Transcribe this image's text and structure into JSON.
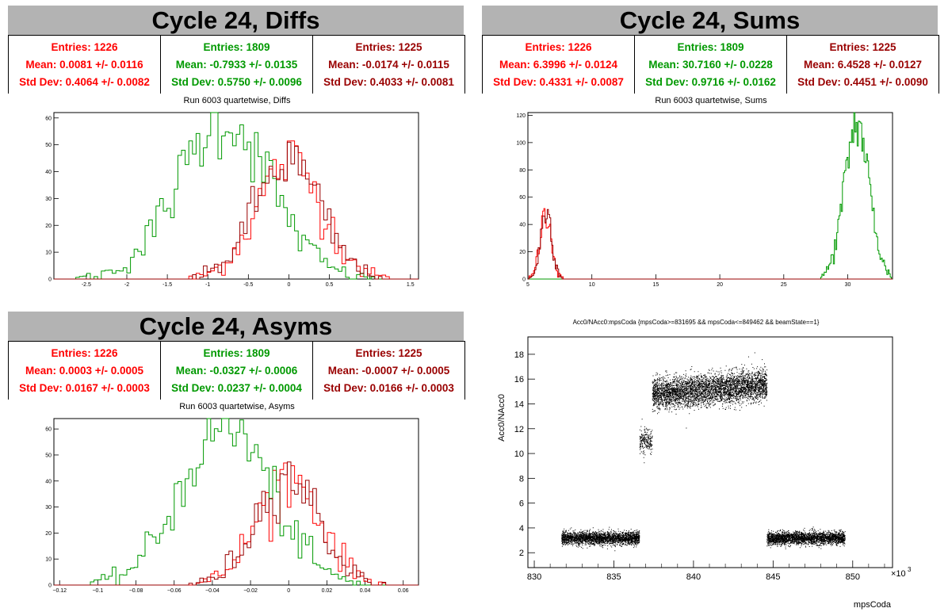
{
  "colors": {
    "series1": "#ff0000",
    "series2": "#009900",
    "series3": "#990000"
  },
  "panels": {
    "diffs": {
      "title": "Cycle 24, Diffs",
      "hist_title": "Run 6003 quartetwise, Diffs",
      "stats": [
        {
          "entries": "Entries: 1226",
          "mean": "Mean: 0.0081 +/- 0.0116",
          "std": "Std Dev: 0.4064 +/- 0.0082"
        },
        {
          "entries": "Entries: 1809",
          "mean": "Mean: -0.7933 +/- 0.0135",
          "std": "Std Dev: 0.5750 +/- 0.0096"
        },
        {
          "entries": "Entries: 1225",
          "mean": "Mean: -0.0174 +/- 0.0115",
          "std": "Std Dev: 0.4033 +/- 0.0081"
        }
      ]
    },
    "sums": {
      "title": "Cycle 24, Sums",
      "hist_title": "Run 6003 quartetwise, Sums",
      "stats": [
        {
          "entries": "Entries: 1226",
          "mean": "Mean: 6.3996 +/- 0.0124",
          "std": "Std Dev: 0.4331 +/- 0.0087"
        },
        {
          "entries": "Entries: 1809",
          "mean": "Mean: 30.7160 +/- 0.0228",
          "std": "Std Dev: 0.9716 +/- 0.0162"
        },
        {
          "entries": "Entries: 1225",
          "mean": "Mean: 6.4528 +/- 0.0127",
          "std": "Std Dev: 0.4451 +/- 0.0090"
        }
      ]
    },
    "asyms": {
      "title": "Cycle 24, Asyms",
      "hist_title": "Run 6003 quartetwise, Asyms",
      "stats": [
        {
          "entries": "Entries: 1226",
          "mean": "Mean: 0.0003 +/- 0.0005",
          "std": "Std Dev: 0.0167 +/- 0.0003"
        },
        {
          "entries": "Entries: 1809",
          "mean": "Mean: -0.0327 +/- 0.0006",
          "std": "Std Dev: 0.0237 +/- 0.0004"
        },
        {
          "entries": "Entries: 1225",
          "mean": "Mean: -0.0007 +/- 0.0005",
          "std": "Std Dev: 0.0166 +/- 0.0003"
        }
      ]
    },
    "scatter": {
      "title": "Acc0/NAcc0:mpsCoda {mpsCoda>=831695 && mpsCoda<=849462 && beamState==1}",
      "xlabel": "mpsCoda",
      "ylabel": "Acc0/NAcc0",
      "exponent": "×10",
      "exponent_power": "3"
    }
  },
  "chart_data": [
    {
      "type": "histogram",
      "title": "Run 6003 quartetwise, Diffs",
      "xlim": [
        -2.9,
        1.6
      ],
      "ylim": [
        0,
        62
      ],
      "xticks": [
        -2.5,
        -2,
        -1.5,
        -1,
        -0.5,
        0,
        0.5,
        1,
        1.5
      ],
      "xtick_labels": [
        "-2.5",
        "-2",
        "-1.5",
        "-1",
        "-0.5",
        "0",
        "0.5",
        "1",
        "1.5"
      ],
      "yticks": [
        0,
        10,
        20,
        30,
        40,
        50,
        60
      ],
      "ytick_labels": [
        "0",
        "10",
        "20",
        "30",
        "40",
        "50",
        "60"
      ],
      "series": [
        {
          "mean": 0.0081,
          "std": 0.4064,
          "peak": 44,
          "color": "#ff0000"
        },
        {
          "mean": -0.7933,
          "std": 0.575,
          "peak": 59,
          "color": "#009900"
        },
        {
          "mean": -0.0174,
          "std": 0.4033,
          "peak": 44,
          "color": "#990000"
        }
      ]
    },
    {
      "type": "histogram",
      "title": "Run 6003 quartetwise, Sums",
      "xlim": [
        5,
        33.5
      ],
      "ylim": [
        0,
        122
      ],
      "xticks": [
        5,
        10,
        15,
        20,
        25,
        30
      ],
      "xtick_labels": [
        "5",
        "10",
        "15",
        "20",
        "25",
        "30"
      ],
      "yticks": [
        0,
        20,
        40,
        60,
        80,
        100,
        120
      ],
      "ytick_labels": [
        "0",
        "20",
        "40",
        "60",
        "80",
        "100",
        "120"
      ],
      "series": [
        {
          "mean": 6.3996,
          "std": 0.4331,
          "peak": 50,
          "color": "#ff0000"
        },
        {
          "mean": 30.716,
          "std": 0.9716,
          "peak": 114,
          "color": "#009900"
        },
        {
          "mean": 6.4528,
          "std": 0.4451,
          "peak": 50,
          "color": "#990000"
        }
      ]
    },
    {
      "type": "histogram",
      "title": "Run 6003 quartetwise, Asyms",
      "xlim": [
        -0.123,
        0.068
      ],
      "ylim": [
        0,
        64
      ],
      "xticks": [
        -0.12,
        -0.1,
        -0.08,
        -0.06,
        -0.04,
        -0.02,
        0,
        0.02,
        0.04,
        0.06
      ],
      "xtick_labels": [
        "−0.12",
        "−0.1",
        "−0.08",
        "−0.06",
        "−0.04",
        "−0.02",
        "0",
        "0.02",
        "0.04",
        "0.06"
      ],
      "yticks": [
        0,
        10,
        20,
        30,
        40,
        50,
        60
      ],
      "ytick_labels": [
        "0",
        "10",
        "20",
        "30",
        "40",
        "50",
        "60"
      ],
      "series": [
        {
          "mean": 0.0003,
          "std": 0.0167,
          "peak": 42,
          "color": "#ff0000"
        },
        {
          "mean": -0.0327,
          "std": 0.0237,
          "peak": 61,
          "color": "#009900"
        },
        {
          "mean": -0.0007,
          "std": 0.0166,
          "peak": 42,
          "color": "#990000"
        }
      ]
    },
    {
      "type": "scatter",
      "title": "Acc0/NAcc0:mpsCoda {mpsCoda>=831695 && mpsCoda<=849462 && beamState==1}",
      "xlabel": "mpsCoda",
      "ylabel": "Acc0/NAcc0",
      "xlim": [
        829.6,
        852.5
      ],
      "ylim": [
        0.8,
        19.4
      ],
      "xticks": [
        830,
        835,
        840,
        845,
        850
      ],
      "xtick_labels": [
        "830",
        "835",
        "840",
        "845",
        "850"
      ],
      "yticks": [
        2,
        4,
        6,
        8,
        10,
        12,
        14,
        16,
        18
      ],
      "ytick_labels": [
        "2",
        "4",
        "6",
        "8",
        "10",
        "12",
        "14",
        "16",
        "18"
      ],
      "clusters": [
        {
          "x": [
            831.7,
            836.6
          ],
          "y_center": 3.2,
          "y_spread": 0.9
        },
        {
          "x": [
            836.6,
            837.4
          ],
          "y_center": 11.0,
          "y_spread": 1.8
        },
        {
          "x": [
            837.4,
            844.6
          ],
          "y_center": 15.2,
          "y_spread": 2.2
        },
        {
          "x": [
            844.6,
            849.5
          ],
          "y_center": 3.2,
          "y_spread": 0.9
        }
      ]
    }
  ]
}
